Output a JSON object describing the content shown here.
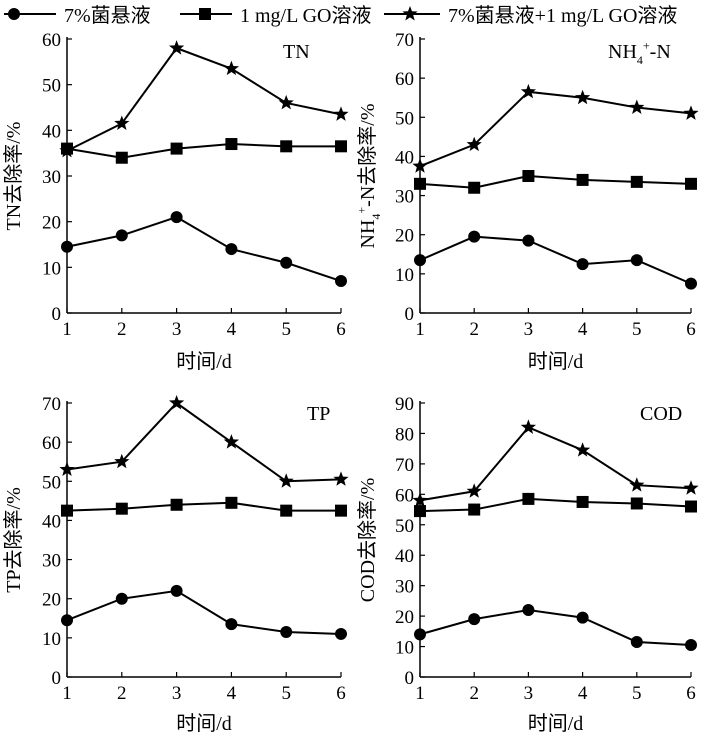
{
  "legend": {
    "placement": "top",
    "items": [
      {
        "label": "7%菌悬液",
        "marker": "circle"
      },
      {
        "label": "1 mg/L GO溶液",
        "marker": "square"
      },
      {
        "label": "7%菌悬液+1 mg/L GO溶液",
        "marker": "star"
      }
    ]
  },
  "chart_data": [
    {
      "type": "line",
      "title": "TN",
      "xlabel": "时间/d",
      "ylabel": "TN去除率/%",
      "xlim": [
        1,
        6
      ],
      "ylim": [
        0,
        60
      ],
      "yticks": [
        0,
        10,
        20,
        30,
        40,
        50,
        60
      ],
      "x": [
        1,
        2,
        3,
        4,
        5,
        6
      ],
      "series": [
        {
          "name": "7%菌悬液",
          "marker": "circle",
          "values": [
            14.5,
            17,
            21,
            14,
            11,
            7
          ]
        },
        {
          "name": "1 mg/L GO溶液",
          "marker": "square",
          "values": [
            36,
            34,
            36,
            37,
            36.5,
            36.5
          ]
        },
        {
          "name": "7%菌悬液+1 mg/L GO溶液",
          "marker": "star",
          "values": [
            35.5,
            41.5,
            58,
            53.5,
            46,
            43.5
          ]
        }
      ]
    },
    {
      "type": "line",
      "title": "NH4+-N",
      "xlabel": "时间/d",
      "ylabel": "NH4+-N去除率/%",
      "xlim": [
        1,
        6
      ],
      "ylim": [
        0,
        70
      ],
      "yticks": [
        0,
        10,
        20,
        30,
        40,
        50,
        60,
        70
      ],
      "x": [
        1,
        2,
        3,
        4,
        5,
        6
      ],
      "series": [
        {
          "name": "7%菌悬液",
          "marker": "circle",
          "values": [
            13.5,
            19.5,
            18.5,
            12.5,
            13.5,
            7.5
          ]
        },
        {
          "name": "1 mg/L GO溶液",
          "marker": "square",
          "values": [
            33,
            32,
            35,
            34,
            33.5,
            33
          ]
        },
        {
          "name": "7%菌悬液+1 mg/L GO溶液",
          "marker": "star",
          "values": [
            37.5,
            43,
            56.5,
            55,
            52.5,
            51
          ]
        }
      ]
    },
    {
      "type": "line",
      "title": "TP",
      "xlabel": "时间/d",
      "ylabel": "TP去除率/%",
      "xlim": [
        1,
        6
      ],
      "ylim": [
        0,
        70
      ],
      "yticks": [
        0,
        10,
        20,
        30,
        40,
        50,
        60,
        70
      ],
      "x": [
        1,
        2,
        3,
        4,
        5,
        6
      ],
      "series": [
        {
          "name": "7%菌悬液",
          "marker": "circle",
          "values": [
            14.5,
            20,
            22,
            13.5,
            11.5,
            11
          ]
        },
        {
          "name": "1 mg/L GO溶液",
          "marker": "square",
          "values": [
            42.5,
            43,
            44,
            44.5,
            42.5,
            42.5
          ]
        },
        {
          "name": "7%菌悬液+1 mg/L GO溶液",
          "marker": "star",
          "values": [
            53,
            55,
            70,
            60,
            50,
            50.5
          ]
        }
      ]
    },
    {
      "type": "line",
      "title": "COD",
      "xlabel": "时间/d",
      "ylabel": "COD去除率/%",
      "xlim": [
        1,
        6
      ],
      "ylim": [
        0,
        90
      ],
      "yticks": [
        0,
        10,
        20,
        30,
        40,
        50,
        60,
        70,
        80,
        90
      ],
      "x": [
        1,
        2,
        3,
        4,
        5,
        6
      ],
      "series": [
        {
          "name": "7%菌悬液",
          "marker": "circle",
          "values": [
            14,
            19,
            22,
            19.5,
            11.5,
            10.5
          ]
        },
        {
          "name": "1 mg/L GO溶液",
          "marker": "square",
          "values": [
            54.5,
            55,
            58.5,
            57.5,
            57,
            56
          ]
        },
        {
          "name": "7%菌悬液+1 mg/L GO溶液",
          "marker": "star",
          "values": [
            58,
            61,
            82,
            74.5,
            63,
            62
          ]
        }
      ]
    }
  ]
}
